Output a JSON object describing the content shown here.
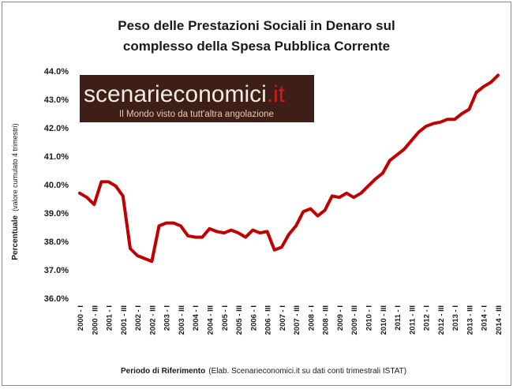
{
  "chart_data": {
    "type": "line",
    "title_line1": "Peso delle Prestazioni Sociali in Denaro sul",
    "title_line2": "complesso della Spesa Pubblica Corrente",
    "ylabel_main": "Percentuale",
    "ylabel_note": "(valore cumulato 4 trimestri)",
    "xlabel_main": "Periodo di Riferimento",
    "xlabel_note": "(Elab. Scenarieconomici.it su dati conti trimestrali ISTAT)",
    "ylim": [
      36.0,
      44.0
    ],
    "yticks": [
      "36.0%",
      "37.0%",
      "38.0%",
      "39.0%",
      "40.0%",
      "41.0%",
      "42.0%",
      "43.0%",
      "44.0%"
    ],
    "grid": false,
    "legend": "none",
    "line_color": "#c00000",
    "xtick_labels": [
      "2000 - I",
      "2000 - III",
      "2001 - I",
      "2001 - III",
      "2002 - I",
      "2002 - III",
      "2003 - I",
      "2003 - III",
      "2004 - I",
      "2004 - III",
      "2005 - I",
      "2005 - III",
      "2006 - I",
      "2006 - III",
      "2007 - I",
      "2007 - III",
      "2008 - I",
      "2008 - III",
      "2009 - I",
      "2009 - III",
      "2010 - I",
      "2010 - III",
      "2011 - I",
      "2011 - III",
      "2012 - I",
      "2012 - III",
      "2013 - I",
      "2013 - III",
      "2014 - I",
      "2014 - III"
    ],
    "series": [
      {
        "values": [
          39.7,
          39.55,
          39.3,
          40.1,
          40.1,
          39.95,
          39.6,
          37.75,
          37.5,
          37.4,
          37.3,
          38.55,
          38.65,
          38.65,
          38.55,
          38.2,
          38.15,
          38.15,
          38.45,
          38.35,
          38.3,
          38.4,
          38.3,
          38.15,
          38.4,
          38.3,
          38.35,
          37.7,
          37.8,
          38.25,
          38.55,
          39.05,
          39.15,
          38.9,
          39.1,
          39.6,
          39.55,
          39.7,
          39.55,
          39.7,
          39.95,
          40.2,
          40.4,
          40.85,
          41.05,
          41.25,
          41.55,
          41.85,
          42.05,
          42.15,
          42.2,
          42.3,
          42.3,
          42.5,
          42.65,
          43.25,
          43.45,
          43.6,
          43.85
        ]
      }
    ]
  },
  "watermark": {
    "name": "scenarieconomici",
    "tld": ".it",
    "tagline": "Il Mondo visto da tutt'altra angolazione"
  }
}
